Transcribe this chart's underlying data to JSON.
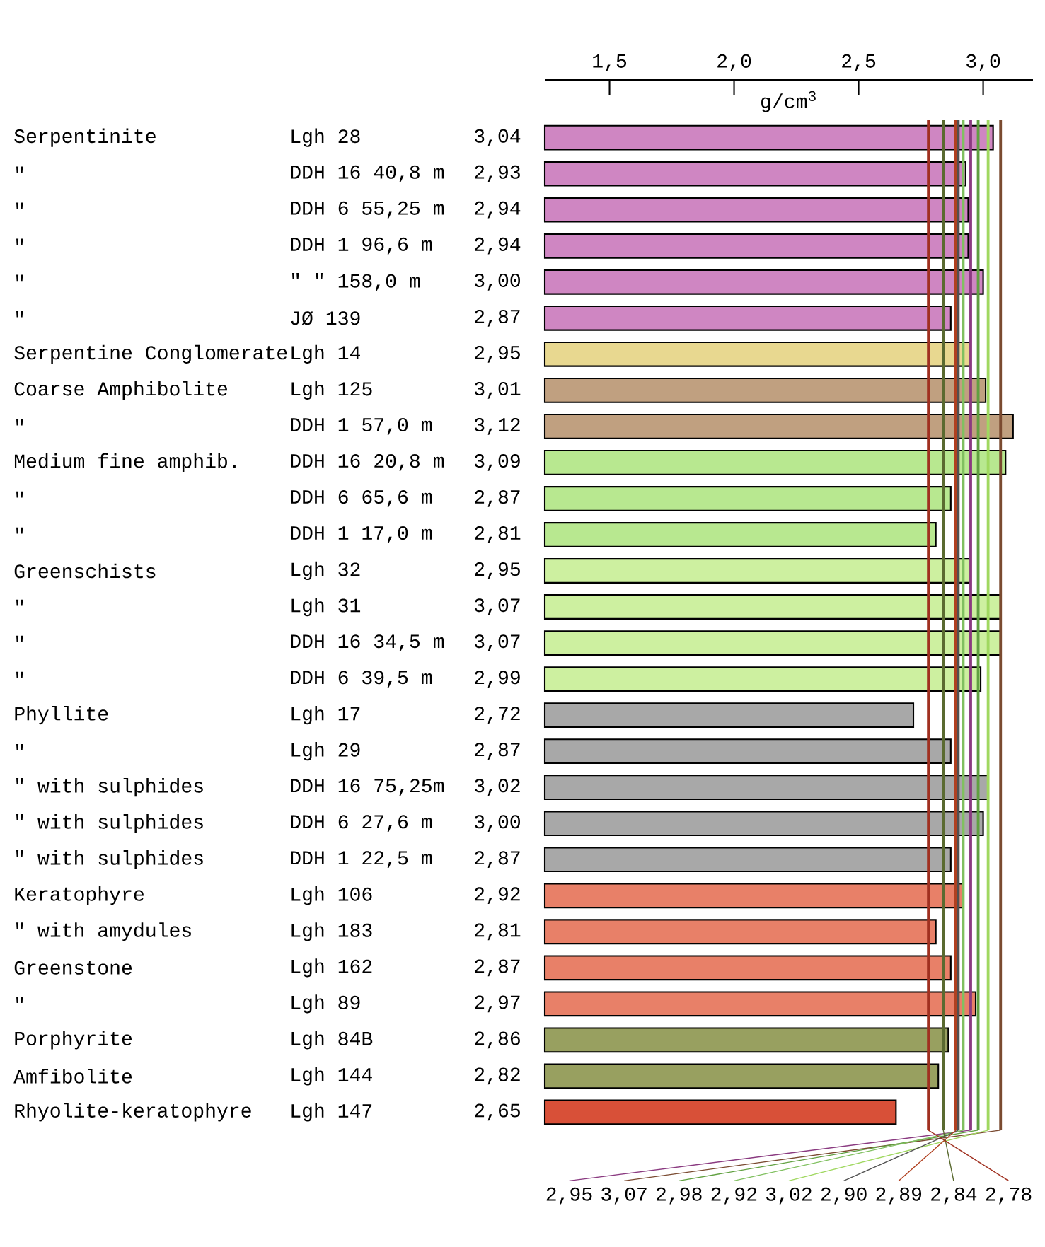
{
  "chart_data": {
    "type": "bar",
    "orientation": "horizontal",
    "xlabel": "g/cm$^{3}$",
    "categories": [
      "Lgh 28",
      "DDH 16  40,8 m",
      "DDH 6  55,25 m",
      "DDH 1  96,6 m",
      "\"  \" 158,0 m",
      "JØ 139",
      "Lgh 14",
      "Lgh 125",
      "DDH 1  57,0 m",
      "DDH 16  20,8 m",
      "DDH 6  65,6 m",
      "DDH 1  17,0 m",
      "Lgh 32",
      "Lgh 31",
      "DDH 16  34,5 m",
      "DDH 6  39,5 m",
      "Lgh 17",
      "Lgh 29",
      "DDH 16  75,25m",
      "DDH 6  27,6 m",
      "DDH 1  22,5 m",
      "Lgh 106",
      "Lgh 183",
      "Lgh 162",
      "Lgh 89",
      "Lgh 84B",
      "Lgh 144",
      "Lgh 147"
    ],
    "values": [
      3.04,
      2.93,
      2.94,
      2.94,
      3.0,
      2.87,
      2.95,
      3.01,
      3.12,
      3.09,
      2.87,
      2.81,
      2.95,
      3.07,
      3.07,
      2.99,
      2.72,
      2.87,
      3.02,
      3.0,
      2.87,
      2.92,
      2.81,
      2.87,
      2.97,
      2.86,
      2.82,
      2.65
    ],
    "value_labels": [
      "3,04",
      "2,93",
      "2,94",
      "2,94",
      "3,00",
      "2,87",
      "2,95",
      "3,01",
      "3,12",
      "3,09",
      "2,87",
      "2,81",
      "2,95",
      "3,07",
      "3,07",
      "2,99",
      "2,72",
      "2,87",
      "3,02",
      "3,00",
      "2,87",
      "2,92",
      "2,81",
      "2,87",
      "2,97",
      "2,86",
      "2,82",
      "2,65"
    ],
    "colors": [
      "#cf86c2",
      "#cf86c2",
      "#cf86c2",
      "#cf86c2",
      "#cf86c2",
      "#cf86c2",
      "#e8d890",
      "#c0a080",
      "#c0a080",
      "#b8e890",
      "#b8e890",
      "#b8e890",
      "#cdf0a0",
      "#cdf0a0",
      "#cdf0a0",
      "#cdf0a0",
      "#a8a8a8",
      "#a8a8a8",
      "#a8a8a8",
      "#a8a8a8",
      "#a8a8a8",
      "#e88068",
      "#e88068",
      "#e88068",
      "#e88068",
      "#98a060",
      "#98a060",
      "#d85038"
    ],
    "xlim": [
      1.24,
      3.2
    ],
    "xticks": [
      {
        "value": 1.5,
        "label": "1,5"
      },
      {
        "value": 2.0,
        "label": "2,0"
      },
      {
        "value": 2.5,
        "label": "2,5"
      },
      {
        "value": 3.0,
        "label": "3,0"
      }
    ],
    "ref_lines": [
      {
        "axis": "x",
        "value": 2.95,
        "label": "2,95",
        "color": "#8a3a80"
      },
      {
        "axis": "x",
        "value": 3.07,
        "label": "3,07",
        "color": "#7a4a30"
      },
      {
        "axis": "x",
        "value": 2.98,
        "label": "2,98",
        "color": "#60a040"
      },
      {
        "axis": "x",
        "value": 2.92,
        "label": "2,92",
        "color": "#80c060"
      },
      {
        "axis": "x",
        "value": 3.02,
        "label": "3,02",
        "color": "#a0d860"
      },
      {
        "axis": "x",
        "value": 2.9,
        "label": "2,90",
        "color": "#505050"
      },
      {
        "axis": "x",
        "value": 2.89,
        "label": "2,89",
        "color": "#b04020"
      },
      {
        "axis": "x",
        "value": 2.84,
        "label": "2,84",
        "color": "#5a6a30"
      },
      {
        "axis": "x",
        "value": 2.78,
        "label": "2,78",
        "color": "#a03020"
      }
    ],
    "annotations": [
      "Serpentinite",
      "\"",
      "\"",
      "\"",
      "\"",
      "\"",
      "Serpentine Conglomerate",
      "Coarse Amphibolite",
      "\"",
      "Medium fine amphib.",
      "\"",
      "\"",
      "Greenschists",
      "\"",
      "\"",
      "\"",
      "Phyllite",
      "\"",
      "\" with sulphides",
      "\" with sulphides",
      "\" with sulphides",
      "Keratophyre",
      "\" with amydules",
      "Greenstone",
      "\"",
      "Porphyrite",
      "Amfibolite",
      "Rhyolite-keratophyre"
    ]
  }
}
